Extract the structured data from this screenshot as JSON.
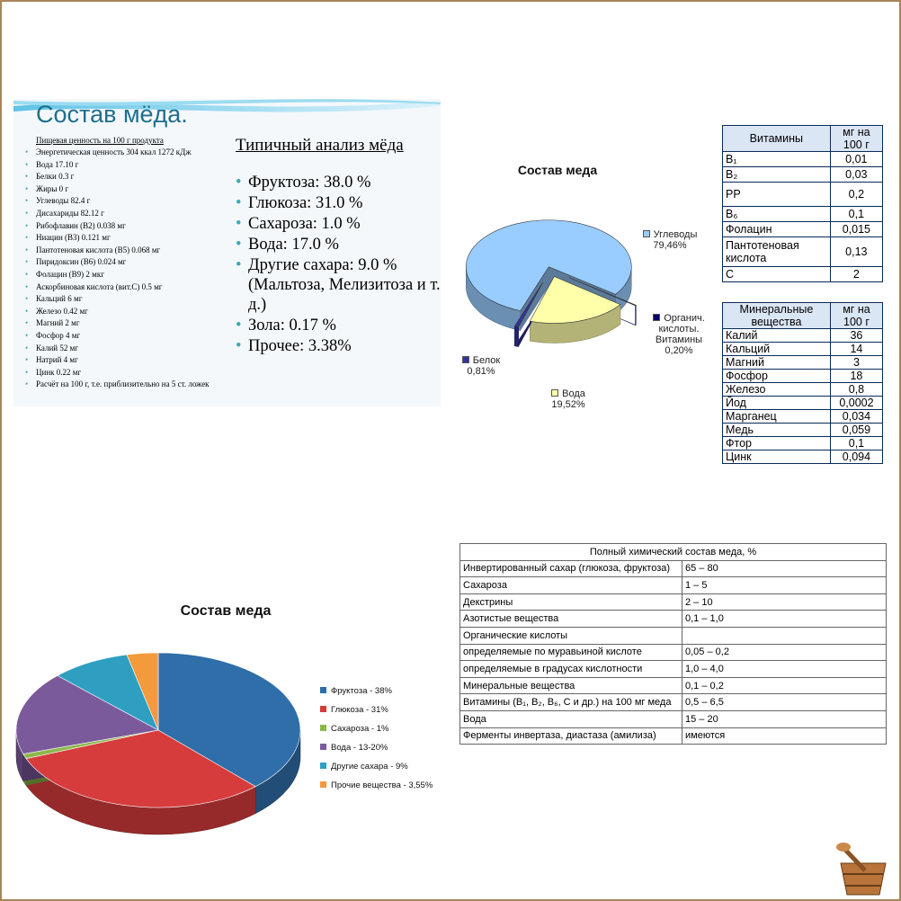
{
  "slide": {
    "title": "Состав мёда.",
    "nutrition_heading": "Пищевая ценность на 100 г продукта",
    "nutrition_items": [
      "Энергетическая ценность 304 ккал 1272 кДж",
      "Вода 17.10 г",
      "Белки 0.3 г",
      "Жиры 0 г",
      "Углеводы 82.4 г",
      "Дисахариды 82.12 г",
      "Рибофлавин (B2) 0.038 мг",
      "Ниацин (B3) 0.121 мг",
      "Пантотеновая кислота (B5) 0.068 мг",
      "Пиридоксин (B6) 0.024 мг",
      "Фолацин (B9) 2 мкг",
      "Аскорбиновая кислота (вит.C) 0.5 мг",
      "Кальций 6 мг",
      "Железо 0.42 мг",
      "Магний 2 мг",
      "Фосфор 4 мг",
      "Калий 52 мг",
      "Натрий 4 мг",
      "Цинк 0.22 мг",
      "Расчёт на 100 г, т.е. приблизительно на 5 ст. ложек"
    ],
    "analysis_heading": "Типичный анализ мёда",
    "analysis_items": [
      "Фруктоза: 38.0 %",
      "Глюкоза: 31.0 %",
      "Сахароза: 1.0 %",
      "Вода: 17.0 %",
      "Другие сахара: 9.0 % (Мальтоза, Мелизитоза и т. д.)",
      "Зола: 0.17 %",
      "Прочее: 3.38%"
    ]
  },
  "chart_data": [
    {
      "type": "pie",
      "title": "Состав меда",
      "categories": [
        "Углеводы",
        "Органич. кислоты. Витамины",
        "Вода",
        "Белок"
      ],
      "values": [
        79.46,
        0.2,
        19.52,
        0.81
      ],
      "value_labels": [
        "79,46%",
        "0,20%",
        "19,52%",
        "0,81%"
      ],
      "colors": [
        "#99ccff",
        "#000066",
        "#ffffaa",
        "#333399"
      ]
    },
    {
      "type": "pie",
      "title": "Состав меда",
      "categories": [
        "Фруктоза - 38%",
        "Глюкоза - 31%",
        "Сахароза - 1%",
        "Вода - 13-20%",
        "Другие сахара - 9%",
        "Прочие вещества - 3,55%"
      ],
      "values": [
        38,
        31,
        1,
        17.45,
        9,
        3.55
      ],
      "colors": [
        "#2f6ea8",
        "#d63c3c",
        "#8cb84a",
        "#7b5a9c",
        "#2e9fc0",
        "#f39a3c"
      ],
      "legend": "right"
    }
  ],
  "vitamins_table": {
    "header": [
      "Витамины",
      "мг на 100 г"
    ],
    "rows": [
      [
        "B₁",
        "0,01"
      ],
      [
        "B₂",
        "0,03"
      ],
      [
        "PP",
        "0,2"
      ],
      [
        "B₆",
        "0,1"
      ],
      [
        "Фолацин",
        "0,015"
      ],
      [
        "Пантотеновая кислота",
        "0,13"
      ],
      [
        "C",
        "2"
      ]
    ]
  },
  "minerals_table": {
    "header": [
      "Минеральные вещества",
      "мг на 100 г"
    ],
    "rows": [
      [
        "Калий",
        "36"
      ],
      [
        "Кальций",
        "14"
      ],
      [
        "Магний",
        "3"
      ],
      [
        "Фосфор",
        "18"
      ],
      [
        "Железо",
        "0,8"
      ],
      [
        "Йод",
        "0,0002"
      ],
      [
        "Марганец",
        "0,034"
      ],
      [
        "Медь",
        "0,059"
      ],
      [
        "Фтор",
        "0,1"
      ],
      [
        "Цинк",
        "0,094"
      ]
    ]
  },
  "composition_table": {
    "title": "Полный химический состав меда, %",
    "rows": [
      [
        "Инвертированный сахар (глюкоза, фруктоза)",
        "65 – 80"
      ],
      [
        "Сахароза",
        "1 – 5"
      ],
      [
        "Декстрины",
        "2 – 10"
      ],
      [
        "Азотистые вещества",
        "0,1 – 1,0"
      ],
      [
        "Органические кислоты"
      ],
      [
        "определяемые по муравьиной кислоте",
        "0,05 – 0,2"
      ],
      [
        "определяемые в градусах кислотности",
        "1,0 – 4,0"
      ],
      [
        "Минеральные вещества",
        "0,1 – 0,2"
      ],
      [
        "Витамины (B₁, B₂, B₆, C и др.) на 100 мг меда",
        "0,5 – 6,5"
      ],
      [
        "Вода",
        "15 – 20"
      ],
      [
        "Ферменты инвертаза, диастаза (амилиза)",
        "имеются"
      ]
    ]
  }
}
